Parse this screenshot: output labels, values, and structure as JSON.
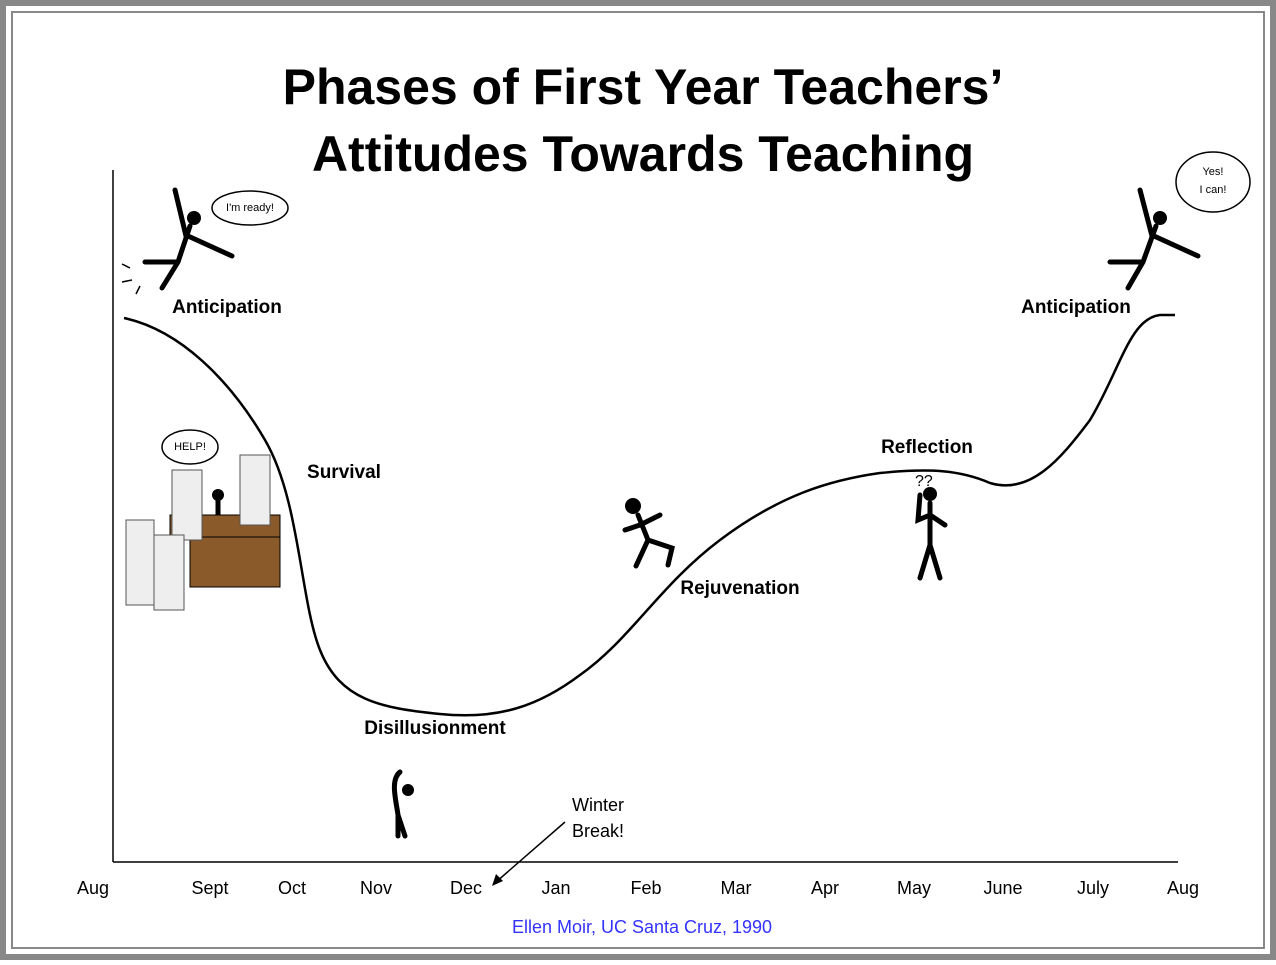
{
  "title": [
    "Phases of First Year Teachers’",
    "Attitudes Towards Teaching"
  ],
  "months": [
    "Aug",
    "Sept",
    "Oct",
    "Nov",
    "Dec",
    "Jan",
    "Feb",
    "Mar",
    "Apr",
    "May",
    "June",
    "July",
    "Aug"
  ],
  "phases": [
    "Anticipation",
    "Survival",
    "Disillusionment",
    "Rejuvenation",
    "Reflection",
    "Anticipation"
  ],
  "bubbles": {
    "ready": "I'm ready!",
    "help": "HELP!",
    "yes": [
      "Yes!",
      "I can!"
    ]
  },
  "annotation": [
    "Winter",
    "Break!"
  ],
  "credit": "Ellen Moir, UC Santa Cruz, 1990"
}
